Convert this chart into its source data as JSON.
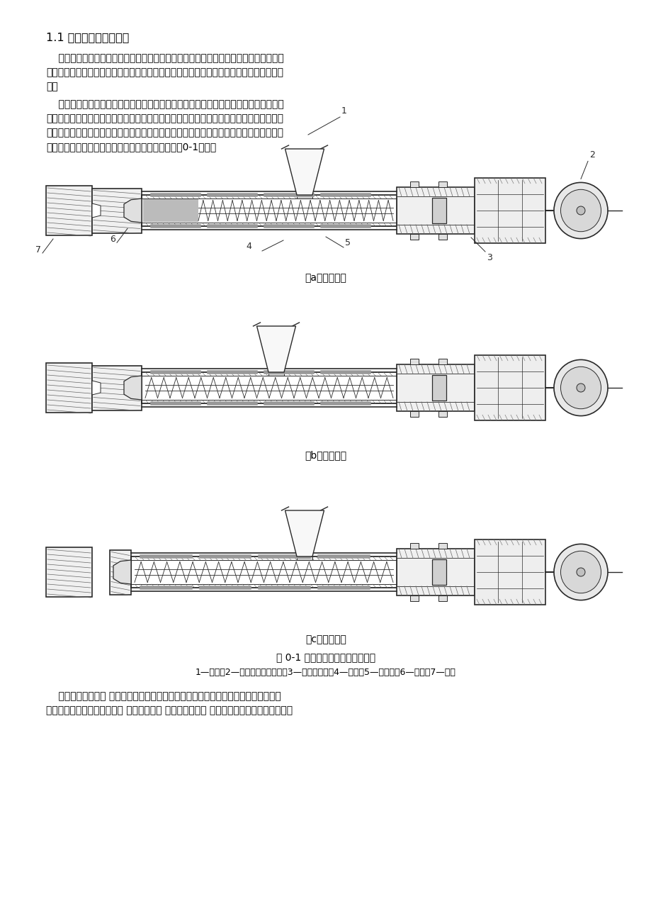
{
  "bg_color": "#ffffff",
  "text_color": "#000000",
  "title": "1.1 注射成型原理及特点",
  "para1_lines": [
    "    注射成型又称注射模塑，是热塑性塑料制件的一种主要成型方法。除氟塑料外，几乎所",
    "有的热塑性塑料都可用此方法成型。近年来，注射成型已成功地用来成型某些热固性塑料制",
    "件。"
  ],
  "para2_lines": [
    "    注射成型的原理是将颗粒状态或粉状塑料从注射机的料斗送进加热的料筒中，经过加热",
    "溶融塑化成为黏流态溶体，在注射机柱塞或螺杆的高压推动下，以很高的流速通过噴嘴，注",
    "入模具型腔，经一定时间的保压冷却定型后可保持模具型腔所赋予的形状，然后开模分型获",
    "得成型塑件。这样就完成了一次注射工作循环，如图0-1所示。"
  ],
  "caption_a": "（a）塑化阶段",
  "caption_b": "（b）注射阶段",
  "caption_c": "（c）塑件脱模",
  "fig_caption": "图 0-1 螺杆式注射机注射成型原理",
  "fig_note": "1—料斗；2—螺杆转动传动装置；3—注射液压缸；4—螺杆；5—加热器；6—噴嘴；7—模具",
  "para3_lines": [
    "    注射成型的特点是 成型周期短，能一次成型外形复杂、尺寸精密、带有嵌件的塑料制",
    "件；对各种塑料的适应性强； 生产效率高， 产品质量稳定， 易于实现自动化生产。所以，注"
  ],
  "line_color": "#2a2a2a",
  "hatch_color": "#555555",
  "light_gray": "#d0d0d0",
  "mid_gray": "#aaaaaa",
  "dark_gray": "#555555"
}
